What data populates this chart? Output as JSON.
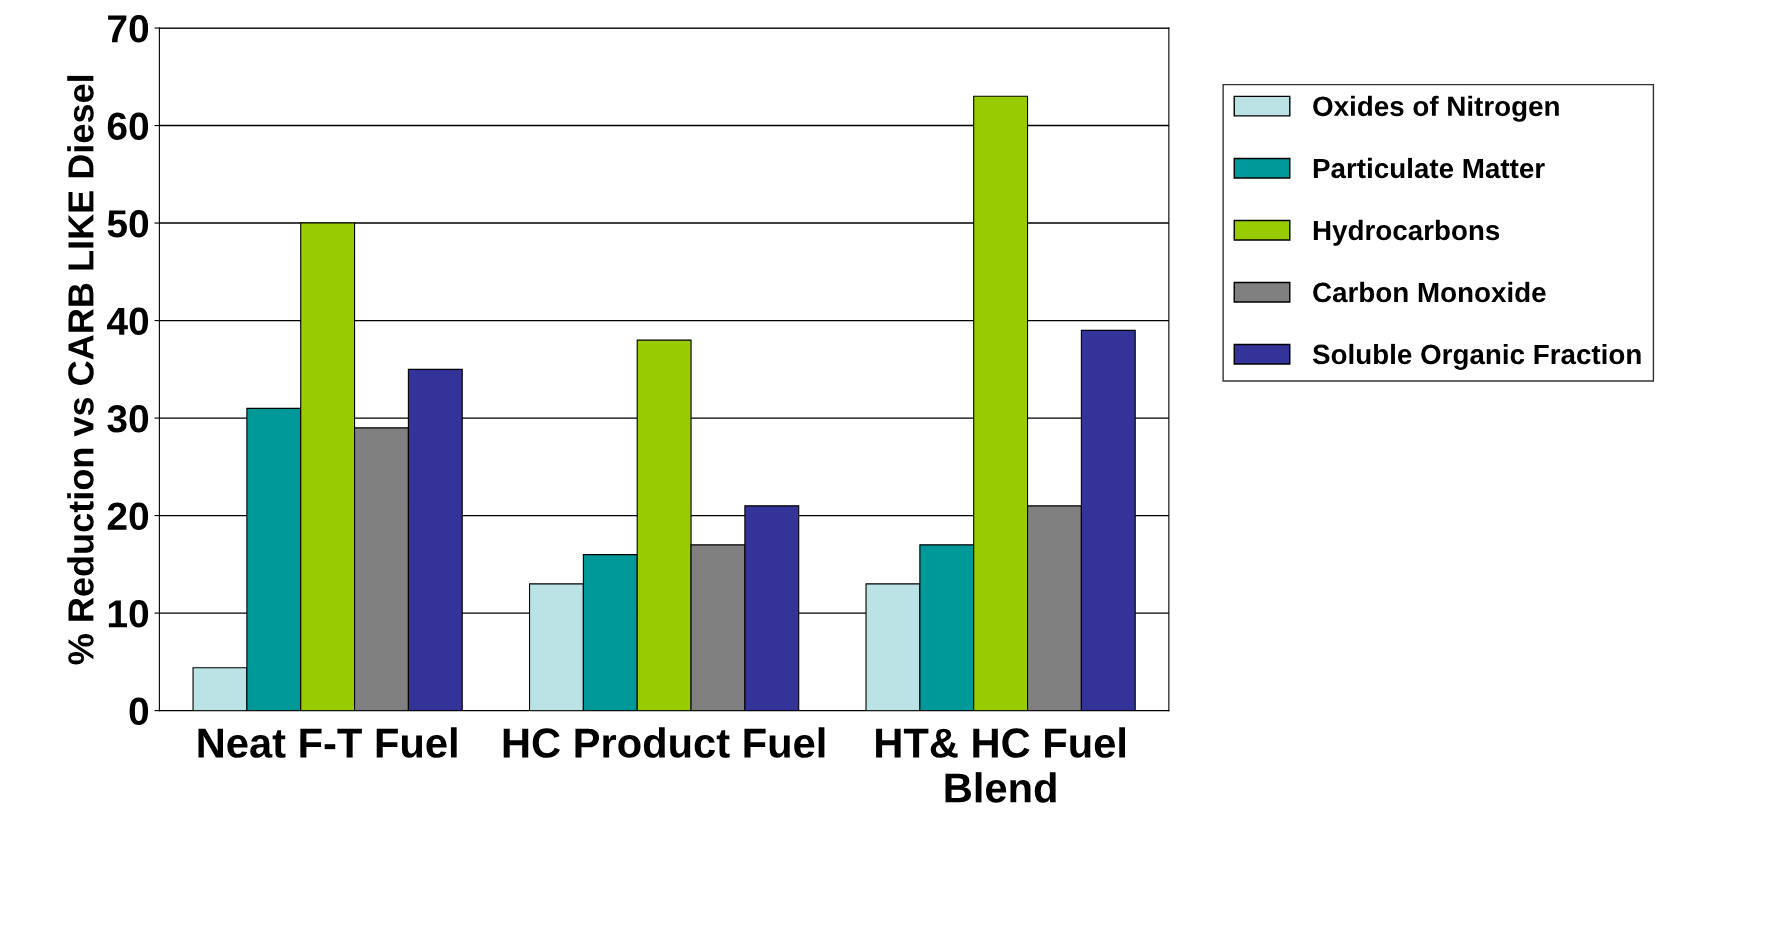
{
  "chart_data": {
    "type": "bar",
    "ylabel": "% Reduction vs CARB LIKE Diesel",
    "categories": [
      "Neat F-T Fuel",
      "HC Product Fuel",
      "HT& HC Fuel\nBlend"
    ],
    "series": [
      {
        "name": "Oxides of Nitrogen",
        "color": "#bbe3e6",
        "values": [
          4.4,
          13,
          13
        ]
      },
      {
        "name": "Particulate Matter",
        "color": "#009999",
        "values": [
          31,
          16,
          17
        ]
      },
      {
        "name": "Hydrocarbons",
        "color": "#99cc00",
        "values": [
          50,
          38,
          63
        ]
      },
      {
        "name": "Carbon Monoxide",
        "color": "#808080",
        "values": [
          29,
          17,
          21
        ]
      },
      {
        "name": "Soluble Organic Fraction",
        "color": "#333399",
        "values": [
          35,
          21,
          39
        ]
      }
    ],
    "ylim": [
      0,
      70
    ],
    "yticks": [
      0,
      10,
      20,
      30,
      40,
      50,
      60,
      70
    ],
    "grid": "y",
    "legend": "right"
  }
}
